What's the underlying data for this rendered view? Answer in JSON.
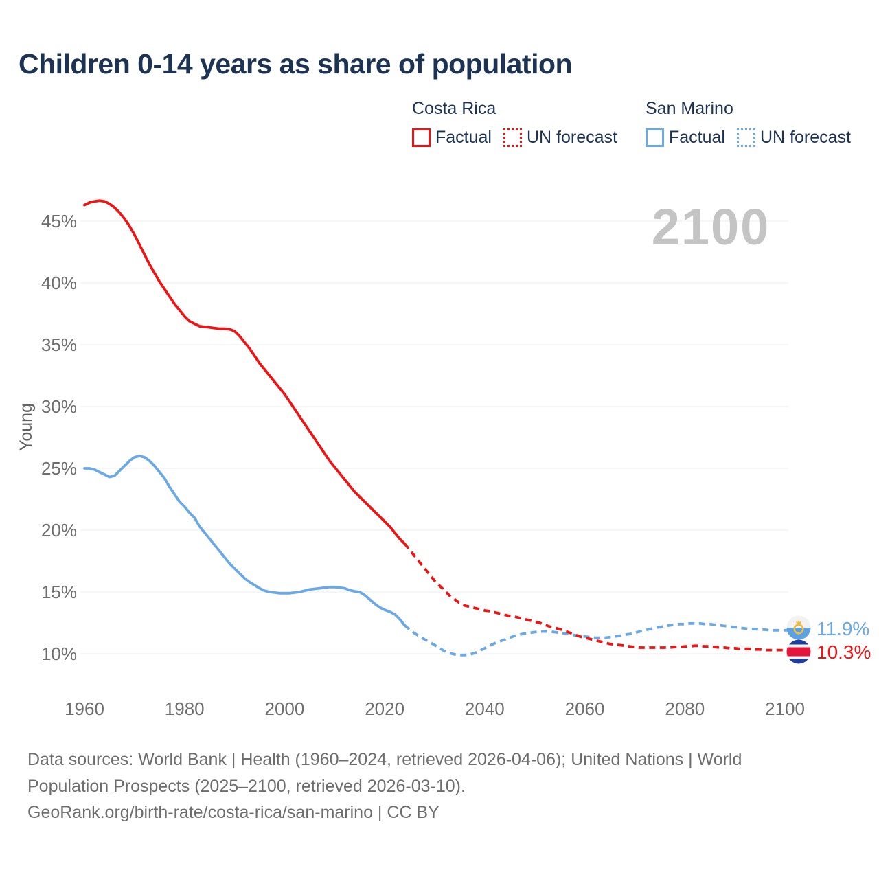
{
  "title": "Children 0-14 years as share of population",
  "watermark": "2100",
  "colors": {
    "costa_rica": "#ee1414",
    "san_marino": "#6aa9e6",
    "title_text": "#1c3354",
    "tick_text": "#6e6e6e",
    "gridline": "#ececec",
    "watermark_text": "#c4c4c4"
  },
  "legend": {
    "groups": [
      {
        "country": "Costa Rica",
        "color": "#ee1414",
        "items": [
          {
            "label": "Factual",
            "style": "solid"
          },
          {
            "label": "UN forecast",
            "style": "dotted"
          }
        ]
      },
      {
        "country": "San Marino",
        "color": "#6aa9e6",
        "items": [
          {
            "label": "Factual",
            "style": "solid"
          },
          {
            "label": "UN forecast",
            "style": "dotted"
          }
        ]
      }
    ]
  },
  "end_labels": [
    {
      "series": "San Marino",
      "value_label": "11.9%",
      "color": "#6aa9e6",
      "flag": "san-marino-flag"
    },
    {
      "series": "Costa Rica",
      "value_label": "10.3%",
      "color": "#ee1414",
      "flag": "costa-rica-flag"
    }
  ],
  "footer": {
    "lines": [
      "Data sources: World Bank | Health (1960–2024, retrieved 2026-04-06); United Nations | World",
      "Population Prospects (2025–2100, retrieved 2026-03-10).",
      "GeoRank.org/birth-rate/costa-rica/san-marino | CC BY"
    ]
  },
  "chart_data": {
    "type": "line",
    "title": "Children 0-14 years as share of population",
    "ylabel": "Young",
    "y_unit": "%",
    "grid": "horizontal",
    "xlim": [
      1960,
      2100
    ],
    "ylim": [
      10,
      47
    ],
    "x_ticks": [
      1960,
      1980,
      2000,
      2020,
      2040,
      2060,
      2080,
      2100
    ],
    "y_ticks": [
      45,
      40,
      35,
      30,
      25,
      20,
      15,
      10
    ],
    "series": [
      {
        "id": "san-marino-factual",
        "name": "San Marino — Factual",
        "color": "#6aa9e6",
        "dash": false,
        "start_year": 1960,
        "values": [
          25.0,
          25.0,
          24.9,
          24.7,
          24.5,
          24.3,
          24.4,
          24.8,
          25.2,
          25.6,
          25.9,
          26.0,
          25.9,
          25.6,
          25.2,
          24.7,
          24.2,
          23.5,
          22.9,
          22.3,
          21.9,
          21.4,
          21.0,
          20.3,
          19.8,
          19.3,
          18.8,
          18.3,
          17.8,
          17.3,
          16.9,
          16.5,
          16.1,
          15.8,
          15.55,
          15.3,
          15.1,
          15.0,
          14.95,
          14.9,
          14.9,
          14.9,
          14.95,
          15.0,
          15.1,
          15.2,
          15.25,
          15.3,
          15.35,
          15.4,
          15.4,
          15.35,
          15.3,
          15.15,
          15.05,
          15.0,
          14.75,
          14.4,
          14.05,
          13.75,
          13.55,
          13.4,
          13.2,
          12.8,
          12.3
        ]
      },
      {
        "id": "san-marino-forecast",
        "name": "San Marino — UN forecast",
        "color": "#6aa9e6",
        "dash": true,
        "start_year": 2024,
        "values": [
          12.3,
          11.95,
          11.65,
          11.4,
          11.15,
          10.95,
          10.7,
          10.45,
          10.2,
          10.05,
          9.95,
          9.9,
          9.9,
          9.95,
          10.05,
          10.25,
          10.45,
          10.65,
          10.85,
          11.0,
          11.15,
          11.3,
          11.45,
          11.55,
          11.65,
          11.7,
          11.75,
          11.8,
          11.8,
          11.8,
          11.75,
          11.7,
          11.65,
          11.6,
          11.5,
          11.45,
          11.4,
          11.35,
          11.3,
          11.3,
          11.3,
          11.35,
          11.4,
          11.45,
          11.55,
          11.6,
          11.7,
          11.8,
          11.9,
          12.0,
          12.1,
          12.15,
          12.25,
          12.3,
          12.35,
          12.4,
          12.4,
          12.45,
          12.45,
          12.45,
          12.4,
          12.4,
          12.35,
          12.3,
          12.25,
          12.2,
          12.15,
          12.1,
          12.05,
          12.0,
          12.0,
          11.95,
          11.95,
          11.9,
          11.9,
          11.9,
          11.9
        ]
      },
      {
        "id": "costa-rica-factual",
        "name": "Costa Rica — Factual",
        "color": "#ee1414",
        "dash": false,
        "start_year": 1960,
        "values": [
          46.3,
          46.5,
          46.6,
          46.65,
          46.6,
          46.4,
          46.1,
          45.7,
          45.2,
          44.6,
          43.9,
          43.1,
          42.3,
          41.5,
          40.8,
          40.1,
          39.5,
          38.9,
          38.3,
          37.8,
          37.3,
          36.9,
          36.7,
          36.5,
          36.45,
          36.4,
          36.35,
          36.3,
          36.3,
          36.25,
          36.1,
          35.7,
          35.2,
          34.7,
          34.1,
          33.5,
          33.0,
          32.5,
          32.0,
          31.5,
          31.0,
          30.4,
          29.8,
          29.2,
          28.6,
          28.0,
          27.4,
          26.8,
          26.2,
          25.6,
          25.1,
          24.6,
          24.1,
          23.6,
          23.1,
          22.7,
          22.3,
          21.9,
          21.5,
          21.1,
          20.7,
          20.3,
          19.8,
          19.3,
          18.9
        ]
      },
      {
        "id": "costa-rica-forecast",
        "name": "Costa Rica — UN forecast",
        "color": "#ee1414",
        "dash": true,
        "start_year": 2024,
        "values": [
          18.9,
          18.4,
          17.9,
          17.4,
          16.9,
          16.4,
          15.9,
          15.5,
          15.1,
          14.7,
          14.4,
          14.1,
          13.9,
          13.8,
          13.7,
          13.6,
          13.5,
          13.45,
          13.35,
          13.25,
          13.15,
          13.05,
          13.0,
          12.9,
          12.8,
          12.7,
          12.6,
          12.5,
          12.35,
          12.2,
          12.1,
          12.0,
          11.85,
          11.7,
          11.55,
          11.4,
          11.3,
          11.2,
          11.1,
          11.0,
          10.9,
          10.8,
          10.75,
          10.7,
          10.65,
          10.6,
          10.55,
          10.5,
          10.5,
          10.5,
          10.5,
          10.5,
          10.5,
          10.5,
          10.55,
          10.55,
          10.6,
          10.6,
          10.65,
          10.65,
          10.6,
          10.6,
          10.55,
          10.5,
          10.5,
          10.45,
          10.45,
          10.4,
          10.4,
          10.4,
          10.35,
          10.35,
          10.3,
          10.3,
          10.3,
          10.3,
          10.3
        ]
      }
    ]
  }
}
